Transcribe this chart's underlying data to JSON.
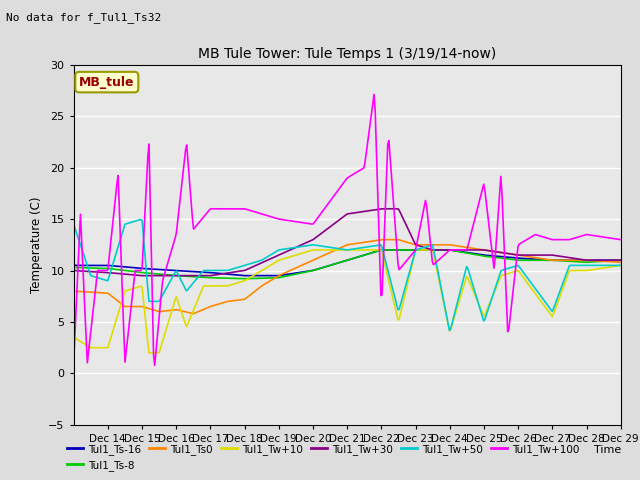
{
  "title": "MB Tule Tower: Tule Temps 1 (3/19/14-now)",
  "no_data_text": "No data for f_Tul1_Ts32",
  "ylabel": "Temperature (C)",
  "xlabel_time": "Time",
  "ylim": [
    -5,
    30
  ],
  "yticks": [
    -5,
    0,
    5,
    10,
    15,
    20,
    25,
    30
  ],
  "series_colors": {
    "Tul1_Ts-16": "#0000bb",
    "Tul1_Ts-8": "#00cc00",
    "Tul1_Ts0": "#ff8800",
    "Tul1_Tw+10": "#dddd00",
    "Tul1_Tw+30": "#880088",
    "Tul1_Tw+50": "#00cccc",
    "Tul1_Tw+100": "#ff00ff"
  },
  "fig_bg": "#dddddd",
  "plot_bg": "#e8e8e8",
  "grid_color": "#ffffff",
  "legend_box_facecolor": "#ffffcc",
  "legend_box_edgecolor": "#999900",
  "legend_box_text_color": "#990000",
  "legend_box_label": "MB_tule",
  "xtick_labels": [
    "Dec 14",
    "Dec 15",
    "Dec 16",
    "Dec 17",
    "Dec 18",
    "Dec 19",
    "Dec 20",
    "Dec 21",
    "Dec 22",
    "Dec 23",
    "Dec 24",
    "Dec 25",
    "Dec 26",
    "Dec 27",
    "Dec 28",
    "Dec 29"
  ]
}
